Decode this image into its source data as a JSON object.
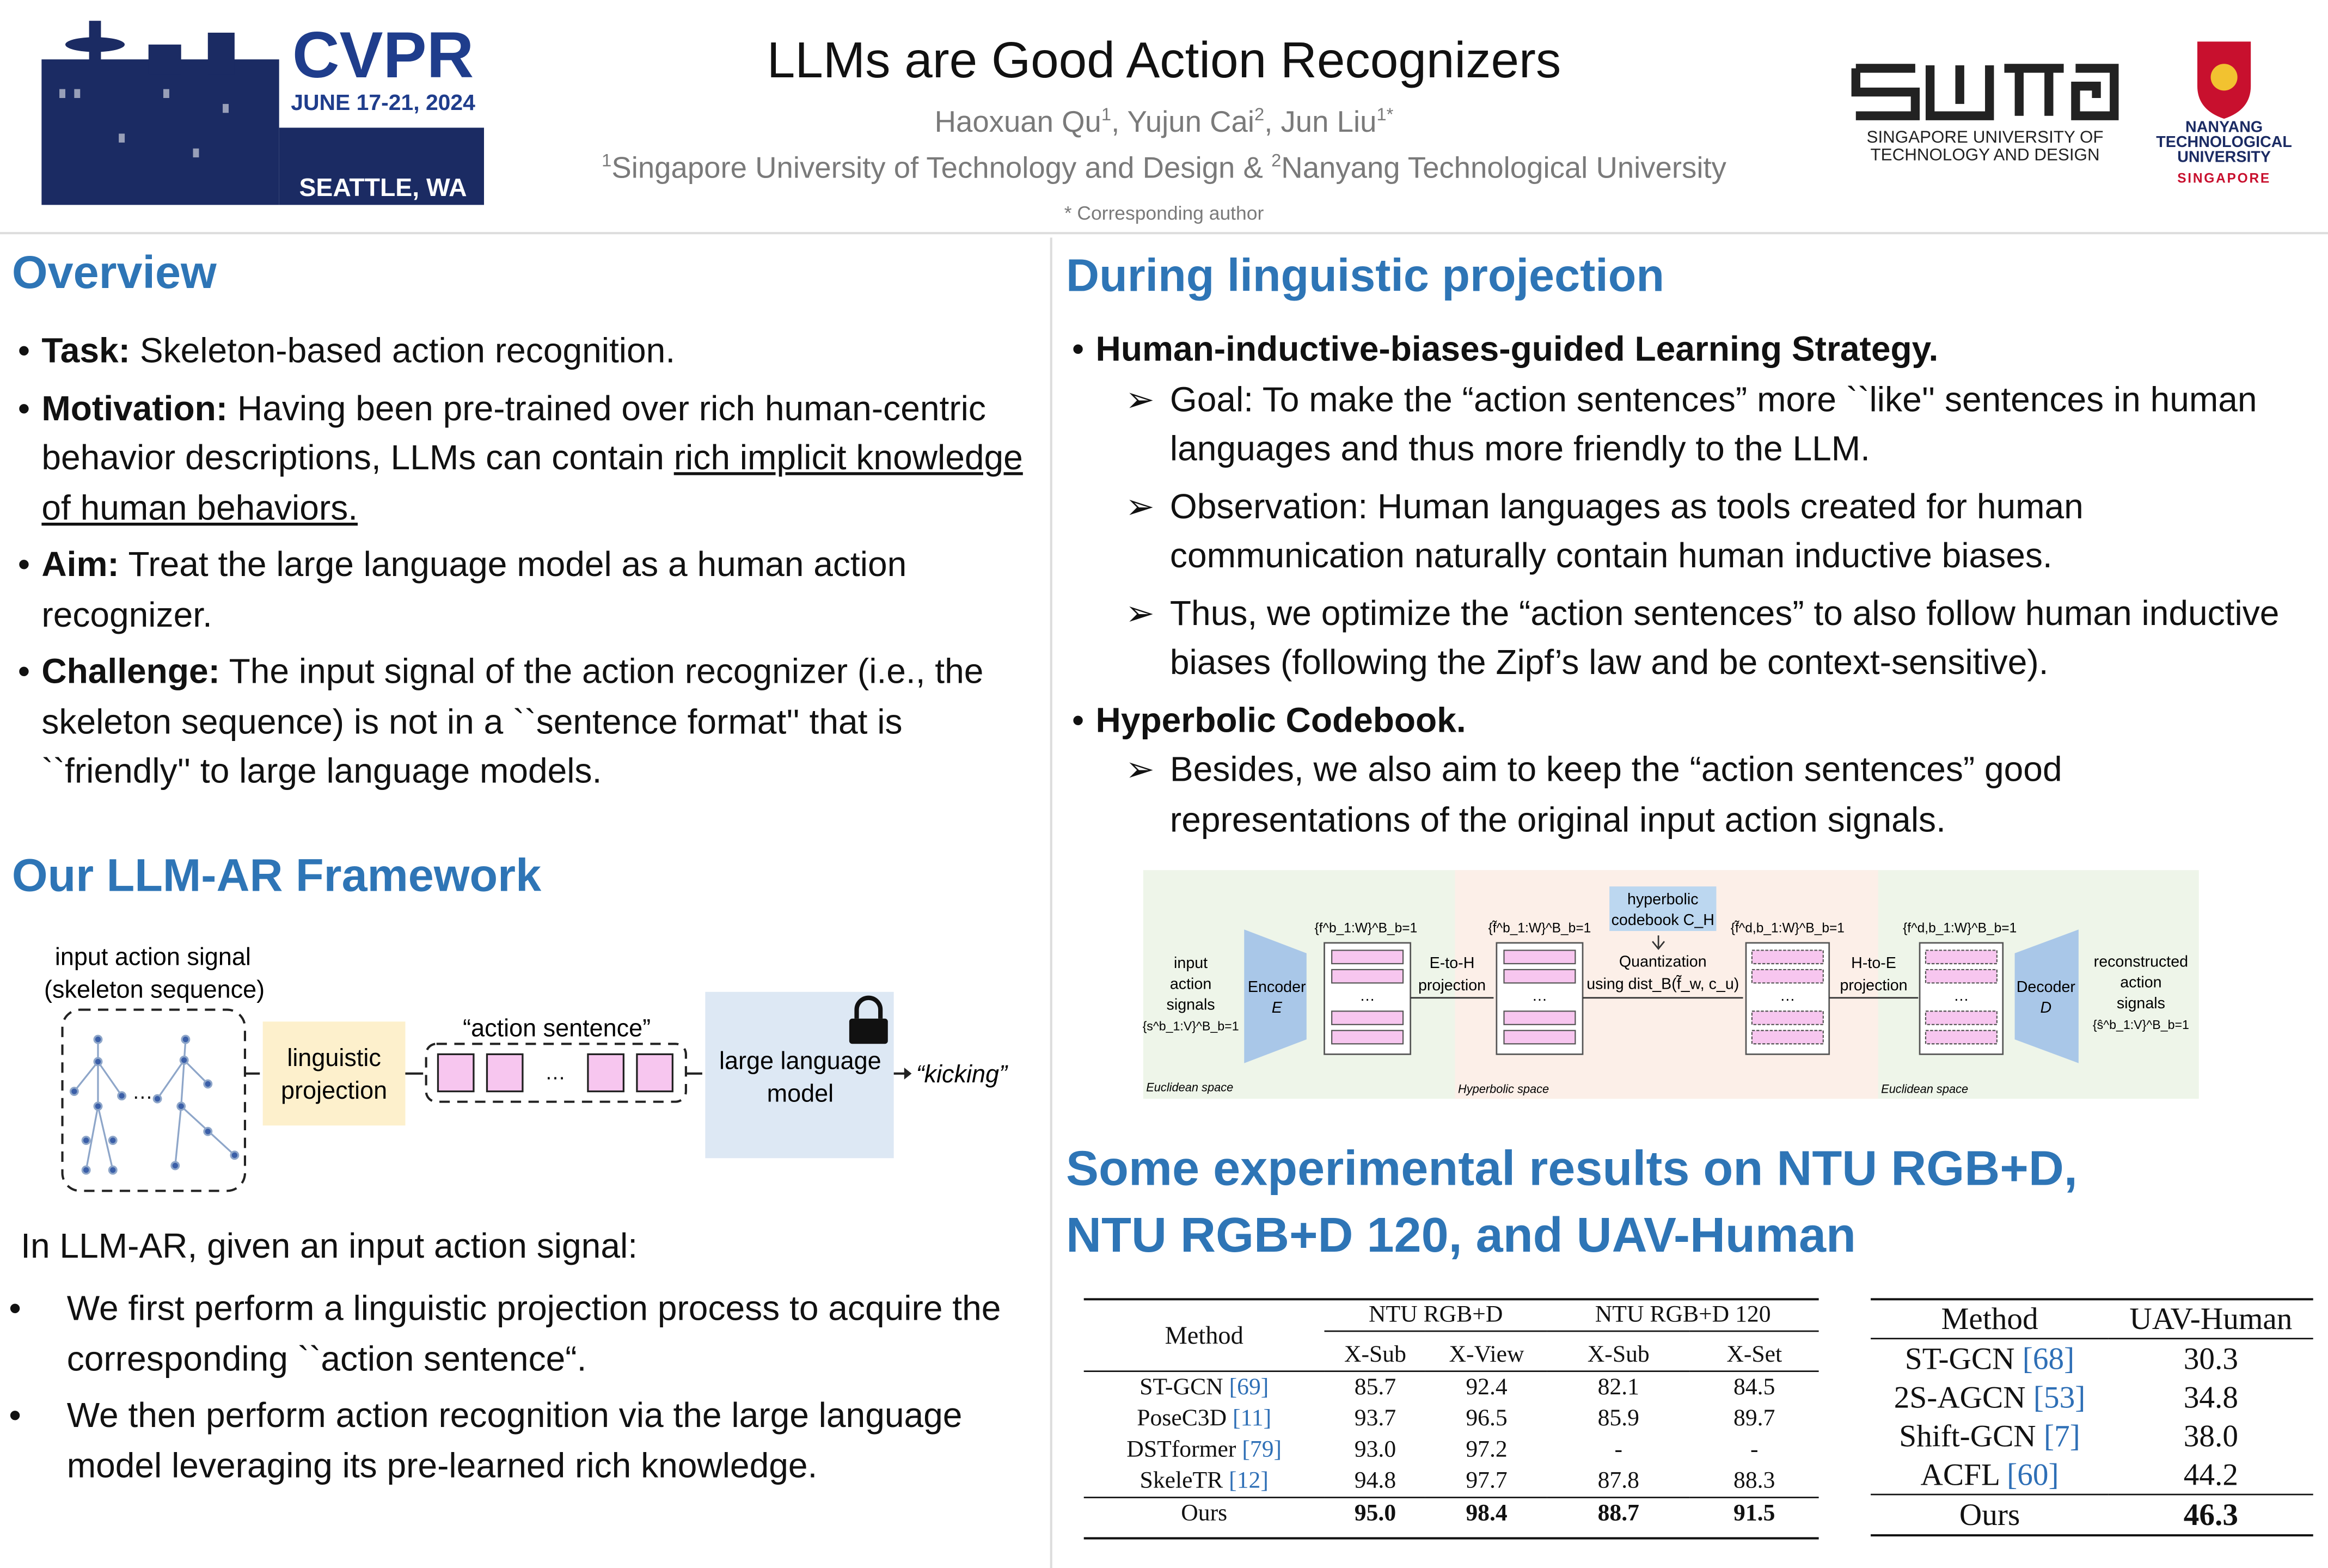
{
  "header": {
    "title": "LLMs are Good Action Recognizers",
    "authors": [
      {
        "name": "Haoxuan Qu",
        "sup": "1"
      },
      {
        "name": "Yujun Cai",
        "sup": "2"
      },
      {
        "name": "Jun Liu",
        "sup": "1*"
      }
    ],
    "affiliations": [
      {
        "sup": "1",
        "name": "Singapore University of Technology and Design &"
      },
      {
        "sup": "2",
        "name": "Nanyang Technological University"
      }
    ],
    "note": "* Corresponding author"
  },
  "logos": {
    "conference": {
      "name": "CVPR",
      "dates": "JUNE 17-21, 2024",
      "city": "SEATTLE, WA"
    },
    "sutd": [
      "SINGAPORE UNIVERSITY OF",
      "TECHNOLOGY AND DESIGN"
    ],
    "ntu": [
      "NANYANG",
      "TECHNOLOGICAL",
      "UNIVERSITY",
      "SINGAPORE"
    ]
  },
  "overview": {
    "heading": "Overview",
    "bullets": [
      {
        "label": "Task:",
        "text": "Skeleton-based action recognition."
      },
      {
        "label": "Motivation:",
        "text": "Having been pre-trained over rich human-centric behavior descriptions, LLMs can contain",
        "underlined": "rich implicit knowledge of human behaviors."
      },
      {
        "label": "Aim:",
        "text": "Treat the large language model as a human action recognizer."
      },
      {
        "label": "Challenge:",
        "text": "The input signal of the action recognizer (i.e., the skeleton sequence) is not in a ``sentence format'' that is ``friendly'' to large language models."
      }
    ]
  },
  "framework": {
    "heading": "Our LLM-AR Framework",
    "diagram": {
      "input": [
        "input action signal",
        "(skeleton sequence)"
      ],
      "ellipsis": "…",
      "projection": [
        "linguistic",
        "projection"
      ],
      "sentence": "“action sentence”",
      "llm": [
        "large language",
        "model"
      ],
      "output": "“kicking”"
    },
    "intro": "In LLM-AR, given an input action signal:",
    "bullets": [
      "We first perform a linguistic projection process to acquire the corresponding ``action sentence“.",
      "We then perform action recognition via the large language model leveraging its pre-learned rich knowledge."
    ]
  },
  "projection": {
    "heading": "During linguistic projection",
    "sections": [
      {
        "title": "Human-inductive-biases-guided Learning Strategy.",
        "items": [
          "Goal: To make the “action sentences” more ``like'' sentences in human languages and thus more friendly to the LLM.",
          "Observation: Human languages as tools created for human communication naturally contain human inductive biases.",
          "Thus, we optimize the “action sentences” to also follow human inductive biases (following the Zipf’s law and be context-sensitive)."
        ]
      },
      {
        "title": "Hyperbolic Codebook.",
        "items": [
          "Besides, we also aim to keep the “action sentences” good representations of the original input action signals."
        ]
      }
    ],
    "figure": {
      "input": [
        "input",
        "action",
        "signals",
        "{s^b_1:V}^B_b=1"
      ],
      "encoder": [
        "Encoder",
        "E"
      ],
      "features": "{f^b_1:W}^B_b=1",
      "e_to_h": [
        "E-to-H",
        "projection"
      ],
      "hyp_features": "{f̃^b_1:W}^B_b=1",
      "codebook": [
        "hyperbolic",
        "codebook C_H"
      ],
      "quantization": [
        "Quantization",
        "using dist_B(f̃_w, c_u)"
      ],
      "quantized": "{f̃^d,b_1:W}^B_b=1",
      "h_to_e": [
        "H-to-E",
        "projection"
      ],
      "euc_quantized": "{f^d,b_1:W}^B_b=1",
      "decoder": [
        "Decoder",
        "D"
      ],
      "output": [
        "reconstructed",
        "action",
        "signals",
        "{ŝ^b_1:V}^B_b=1"
      ],
      "spaces": [
        "Euclidean space",
        "Hyperbolic space",
        "Euclidean space"
      ],
      "ellipsis": "…"
    }
  },
  "results": {
    "heading": [
      "Some experimental results on NTU RGB+D,",
      "NTU RGB+D 120, and UAV-Human"
    ],
    "table1": {
      "method_header": "Method",
      "groups": [
        {
          "name": "NTU RGB+D",
          "columns": [
            "X-Sub",
            "X-View"
          ]
        },
        {
          "name": "NTU RGB+D 120",
          "columns": [
            "X-Sub",
            "X-Set"
          ]
        }
      ],
      "rows": [
        {
          "method": "ST-GCN",
          "ref": "[69]",
          "values": [
            "85.7",
            "92.4",
            "82.1",
            "84.5"
          ]
        },
        {
          "method": "PoseC3D",
          "ref": "[11]",
          "values": [
            "93.7",
            "96.5",
            "85.9",
            "89.7"
          ]
        },
        {
          "method": "DSTformer",
          "ref": "[79]",
          "values": [
            "93.0",
            "97.2",
            "-",
            "-"
          ]
        },
        {
          "method": "SkeleTR",
          "ref": "[12]",
          "values": [
            "94.8",
            "97.7",
            "87.8",
            "88.3"
          ]
        },
        {
          "method": "Ours",
          "values": [
            "95.0",
            "98.4",
            "88.7",
            "91.5"
          ]
        }
      ]
    },
    "table2": {
      "header": [
        "Method",
        "UAV-Human"
      ],
      "rows": [
        {
          "method": "ST-GCN",
          "ref": "[68]",
          "value": "30.3"
        },
        {
          "method": "2S-AGCN",
          "ref": "[53]",
          "value": "34.8"
        },
        {
          "method": "Shift-GCN",
          "ref": "[7]",
          "value": "38.0"
        },
        {
          "method": "ACFL",
          "ref": "[60]",
          "value": "44.2"
        },
        {
          "method": "Ours",
          "value": "46.3"
        }
      ]
    }
  }
}
